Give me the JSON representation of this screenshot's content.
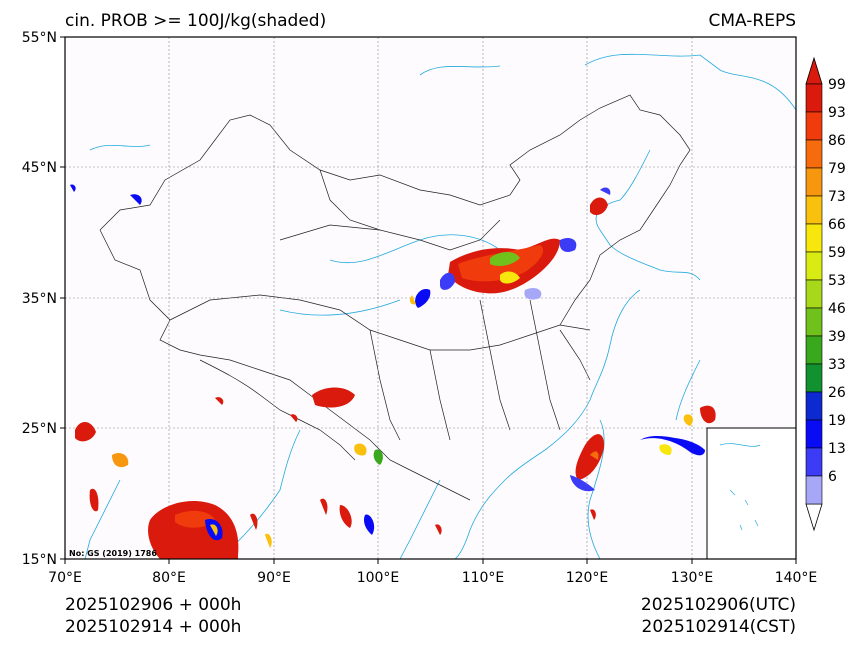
{
  "title_left": "cin. PROB >= 100J/kg(shaded)",
  "title_right": "CMA-REPS",
  "lat_labels": [
    "55°N",
    "45°N",
    "35°N",
    "25°N",
    "15°N"
  ],
  "lon_labels": [
    "70°E",
    "80°E",
    "90°E",
    "100°E",
    "110°E",
    "120°E",
    "130°E",
    "140°E"
  ],
  "colorbar": {
    "labels": [
      "99",
      "93",
      "86",
      "79",
      "73",
      "66",
      "59",
      "53",
      "46",
      "39",
      "33",
      "26",
      "19",
      "13",
      "6"
    ],
    "colors": [
      "#d91a0d",
      "#f03c0c",
      "#f56b0d",
      "#f7960f",
      "#f9c00e",
      "#f7e70d",
      "#d8ec13",
      "#a7d81a",
      "#70c11c",
      "#39a81d",
      "#129131",
      "#0d2ad0",
      "#0a0bf5",
      "#3c3cf7",
      "#a7a7f7"
    ]
  },
  "stamp": "No: GS (2019) 1786",
  "time_left": [
    "2025102906  +  000h",
    "2025102914  +  000h"
  ],
  "time_right": [
    "2025102906(UTC)",
    "2025102914(CST)"
  ]
}
